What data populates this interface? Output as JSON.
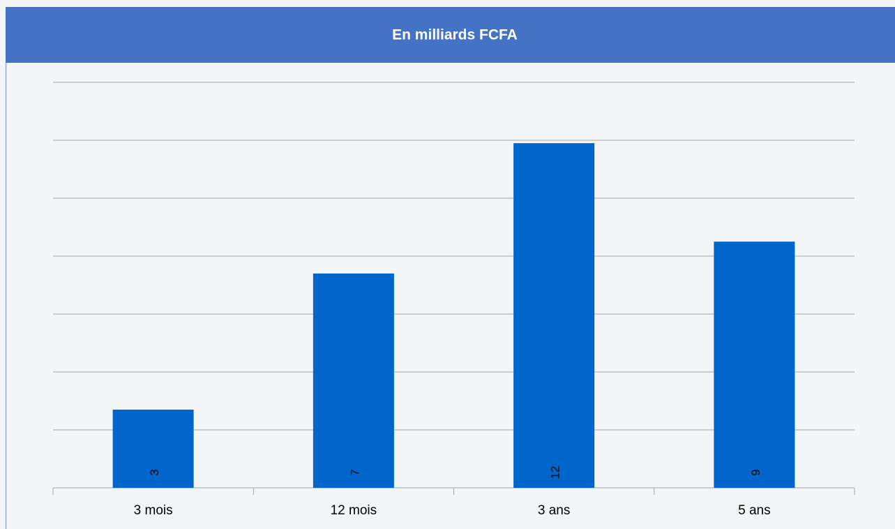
{
  "chart_data": {
    "type": "bar",
    "title": "En milliards FCFA",
    "categories": [
      "3 mois",
      "12 mois",
      "3 ans",
      "5 ans"
    ],
    "values": [
      2.7,
      7.4,
      11.9,
      8.5
    ],
    "value_labels": [
      "3",
      "7",
      "12",
      "9"
    ],
    "color": "#0066cc",
    "ylim": [
      0,
      14
    ],
    "yticks": [
      0,
      2,
      4,
      6,
      8,
      10,
      12,
      14
    ],
    "show_ytick_labels": false,
    "grid": true
  }
}
